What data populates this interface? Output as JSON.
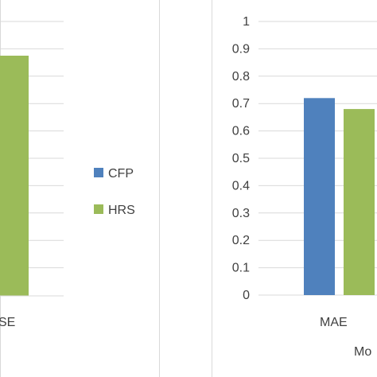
{
  "chart_data": [
    {
      "type": "bar",
      "categories": [
        "SE"
      ],
      "series": [
        {
          "name": "CFP",
          "values": [
            null
          ]
        },
        {
          "name": "HRS",
          "values": [
            null
          ]
        }
      ],
      "grid": true
    },
    {
      "type": "bar",
      "categories": [
        "MAE"
      ],
      "series": [
        {
          "name": "CFP",
          "values": [
            0.72
          ]
        },
        {
          "name": "HRS",
          "values": [
            0.68
          ]
        }
      ],
      "xlabel": "Mo",
      "yticks": [
        "0",
        "0.1",
        "0.2",
        "0.3",
        "0.4",
        "0.5",
        "0.6",
        "0.7",
        "0.8",
        "0.9",
        "1"
      ],
      "ylim": [
        0,
        1
      ],
      "grid": true
    }
  ],
  "legend": {
    "placement": "center",
    "items": [
      {
        "label": "CFP",
        "color": "#4f81bd"
      },
      {
        "label": "HRS",
        "color": "#9bbb59"
      }
    ]
  },
  "colors": {
    "CFP": "#4f81bd",
    "HRS": "#9bbb59",
    "grid": "#d9d9d9",
    "border": "#d9d9d9"
  }
}
